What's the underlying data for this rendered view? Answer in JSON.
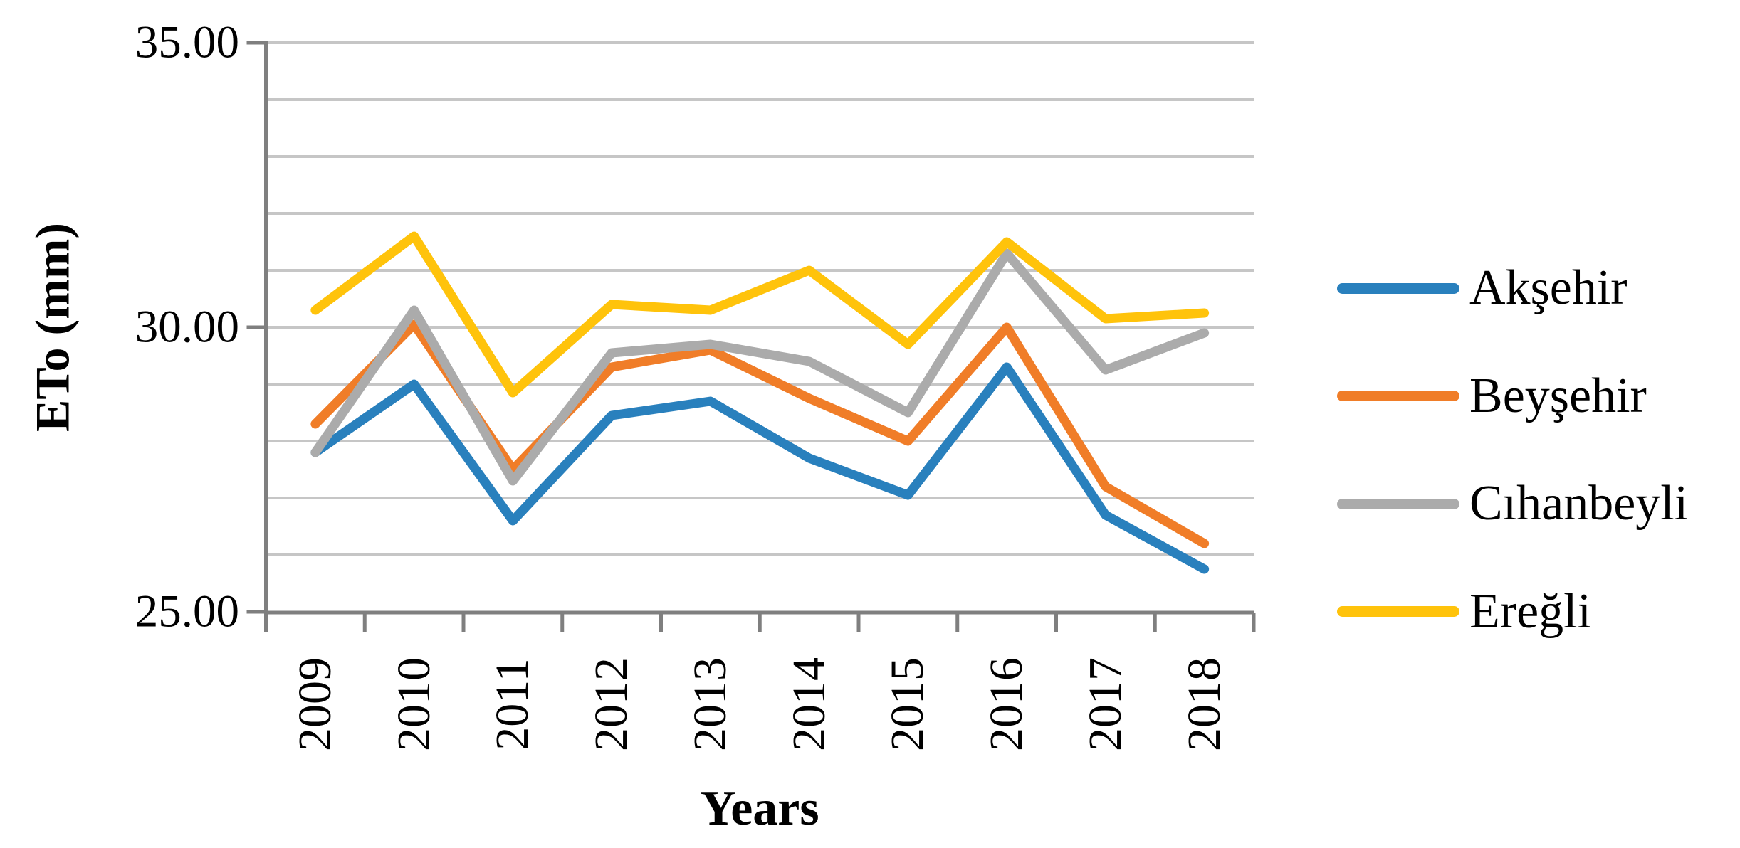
{
  "figure": {
    "description": "Line chart of annual reference evapotranspiration (ETo) for four stations, 2009-2018"
  },
  "chart_data": {
    "type": "line",
    "title": "",
    "xlabel": "Years",
    "ylabel": "ETo (mm)",
    "x_categories": [
      "2009",
      "2010",
      "2011",
      "2012",
      "2013",
      "2014",
      "2015",
      "2016",
      "2017",
      "2018"
    ],
    "ylim": [
      25,
      35
    ],
    "grid_step": 1,
    "grid": "horizontal",
    "legend_position": "right",
    "y_ticks": [
      {
        "value": 25,
        "label": "25.00"
      },
      {
        "value": 30,
        "label": "30.00"
      },
      {
        "value": 35,
        "label": "35.00"
      }
    ],
    "series": [
      {
        "name": "Akşehir",
        "color": "#2980BD",
        "values": [
          27.8,
          29.0,
          26.6,
          28.45,
          28.7,
          27.7,
          27.05,
          29.3,
          26.7,
          25.75
        ]
      },
      {
        "name": "Beyşehir",
        "color": "#F07D28",
        "values": [
          28.3,
          30.05,
          27.5,
          29.3,
          29.6,
          28.75,
          28.0,
          30.0,
          27.2,
          26.2
        ]
      },
      {
        "name": "Cıhanbeyli",
        "color": "#ABABAB",
        "values": [
          27.8,
          30.3,
          27.3,
          29.55,
          29.7,
          29.4,
          28.5,
          31.3,
          29.25,
          29.9
        ]
      },
      {
        "name": "Ereğli",
        "color": "#FFC30B",
        "values": [
          30.3,
          31.6,
          28.85,
          30.4,
          30.3,
          31.0,
          29.7,
          31.5,
          30.15,
          30.25
        ]
      }
    ],
    "colors": {
      "axis": "#7F7F7F",
      "gridline": "#C6C6C6",
      "text": "#000000"
    }
  }
}
